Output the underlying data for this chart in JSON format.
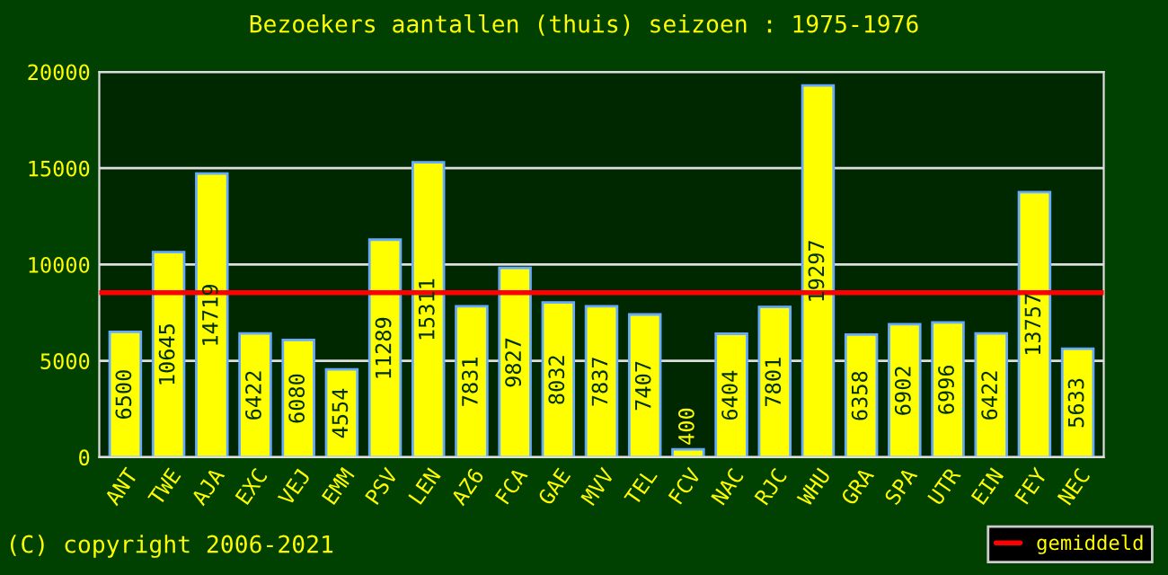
{
  "chart_data": {
    "type": "bar",
    "title": "Bezoekers aantallen (thuis) seizoen : 1975-1976",
    "categories": [
      "ANT",
      "TWE",
      "AJA",
      "EXC",
      "VEJ",
      "EMM",
      "PSV",
      "LEN",
      "AZ6",
      "FCA",
      "GAE",
      "MVV",
      "TEL",
      "FCV",
      "NAC",
      "RJC",
      "WHU",
      "GRA",
      "SPA",
      "UTR",
      "EIN",
      "FEY",
      "NEC"
    ],
    "values": [
      6500,
      10645,
      14719,
      6422,
      6080,
      4554,
      11289,
      15311,
      7831,
      9827,
      8032,
      7837,
      7407,
      400,
      6404,
      7801,
      19297,
      6358,
      6902,
      6996,
      6422,
      13757,
      5633
    ],
    "color": "#ffff00",
    "data_labels": true,
    "ylim": [
      0,
      20000
    ],
    "yticks": [
      0,
      5000,
      10000,
      15000,
      20000
    ],
    "grid": "y",
    "ref_lines": [
      {
        "axis": "y",
        "value": 8540,
        "label": "gemiddeld",
        "color": "#ff0000"
      }
    ],
    "legend": "bottom right",
    "annotations": [
      "(C) copyright 2006-2021"
    ]
  }
}
